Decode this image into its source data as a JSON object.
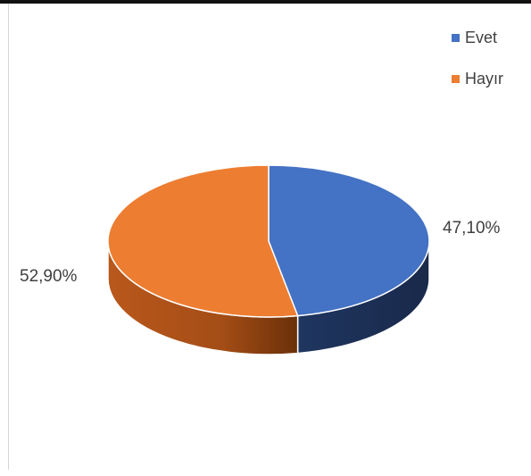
{
  "chart_data": {
    "type": "pie",
    "title": "",
    "categories": [
      "Evet",
      "Hayır"
    ],
    "values": [
      47.1,
      52.9
    ],
    "data_labels": [
      "47,10%",
      "52,90%"
    ],
    "colors": [
      "#4472C4",
      "#ED7D31"
    ],
    "legend_position": "top-right",
    "style": "3d"
  }
}
